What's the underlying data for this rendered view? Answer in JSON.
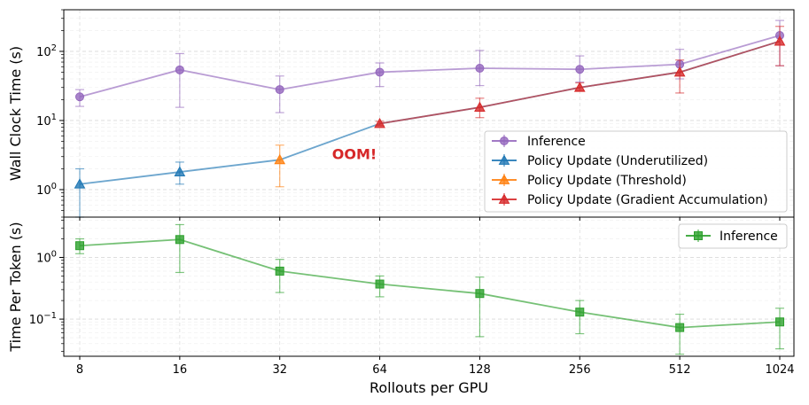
{
  "chart_data": [
    {
      "type": "line",
      "title": "",
      "xlabel": "",
      "ylabel": "Wall Clock Time (s)",
      "xscale": "log2",
      "yscale": "log10",
      "ylim": [
        0.4,
        400
      ],
      "y_ticks": [
        {
          "value": 1,
          "base": "10",
          "exp": "0"
        },
        {
          "value": 10,
          "base": "10",
          "exp": "1"
        },
        {
          "value": 100,
          "base": "10",
          "exp": "2"
        }
      ],
      "grid": true,
      "legend_position": "lower-right",
      "annotations": [
        {
          "text": "OOM!",
          "x": 46,
          "y": 3.2,
          "color": "#d62728"
        }
      ],
      "series": [
        {
          "name": "Inference",
          "color": "#9467bd",
          "marker": "circle",
          "x": [
            8,
            16,
            32,
            64,
            128,
            256,
            512,
            1024
          ],
          "y": [
            22,
            54,
            28,
            50,
            57,
            55,
            65,
            170
          ],
          "err_low": [
            16,
            15.5,
            13,
            31,
            32,
            36,
            40,
            62
          ],
          "err_high": [
            28,
            93,
            44,
            68,
            103,
            86,
            107,
            280
          ]
        },
        {
          "name": "Policy Update (Underutilized)",
          "color": "#1f77b4",
          "marker": "triangle",
          "x": [
            8,
            16,
            32,
            64,
            128,
            256,
            512,
            1024
          ],
          "y": [
            1.2,
            1.8,
            2.7,
            9,
            15.5,
            30,
            50,
            140
          ],
          "marker_points": [
            0,
            1
          ],
          "err_points": [
            0,
            1
          ],
          "err_low": [
            0.4,
            1.2
          ],
          "err_high": [
            2.0,
            2.5
          ]
        },
        {
          "name": "Policy Update (Threshold)",
          "color": "#ff7f0e",
          "marker": "triangle",
          "x": [
            32
          ],
          "y": [
            2.7
          ],
          "err_low": [
            1.1
          ],
          "err_high": [
            4.4
          ]
        },
        {
          "name": "Policy Update (Gradient Accumulation)",
          "color": "#d62728",
          "marker": "triangle",
          "x": [
            64,
            128,
            256,
            512,
            1024
          ],
          "y": [
            9,
            15.5,
            30,
            50,
            140
          ],
          "err_low": [
            8.5,
            11,
            27,
            25,
            62
          ],
          "err_high": [
            9.7,
            21,
            35,
            75,
            230
          ]
        }
      ]
    },
    {
      "type": "line",
      "title": "",
      "xlabel": "Rollouts per GPU",
      "ylabel": "Time Per Token (s)",
      "xscale": "log2",
      "yscale": "log10",
      "ylim": [
        0.025,
        4.5
      ],
      "x_ticks": [
        "8",
        "16",
        "32",
        "64",
        "128",
        "256",
        "512",
        "1024"
      ],
      "y_ticks": [
        {
          "value": 0.1,
          "base": "10",
          "exp": "−1"
        },
        {
          "value": 1,
          "base": "10",
          "exp": "0"
        }
      ],
      "grid": true,
      "legend_position": "upper-right",
      "series": [
        {
          "name": "Inference",
          "color": "#2ca02c",
          "marker": "square",
          "x": [
            8,
            16,
            32,
            64,
            128,
            256,
            512,
            1024
          ],
          "y": [
            1.55,
            1.95,
            0.6,
            0.37,
            0.26,
            0.13,
            0.073,
            0.09
          ],
          "err_low": [
            1.15,
            0.57,
            0.27,
            0.23,
            0.052,
            0.058,
            0.027,
            0.033
          ],
          "err_high": [
            2.0,
            3.4,
            0.93,
            0.5,
            0.48,
            0.2,
            0.12,
            0.15
          ]
        }
      ]
    }
  ]
}
